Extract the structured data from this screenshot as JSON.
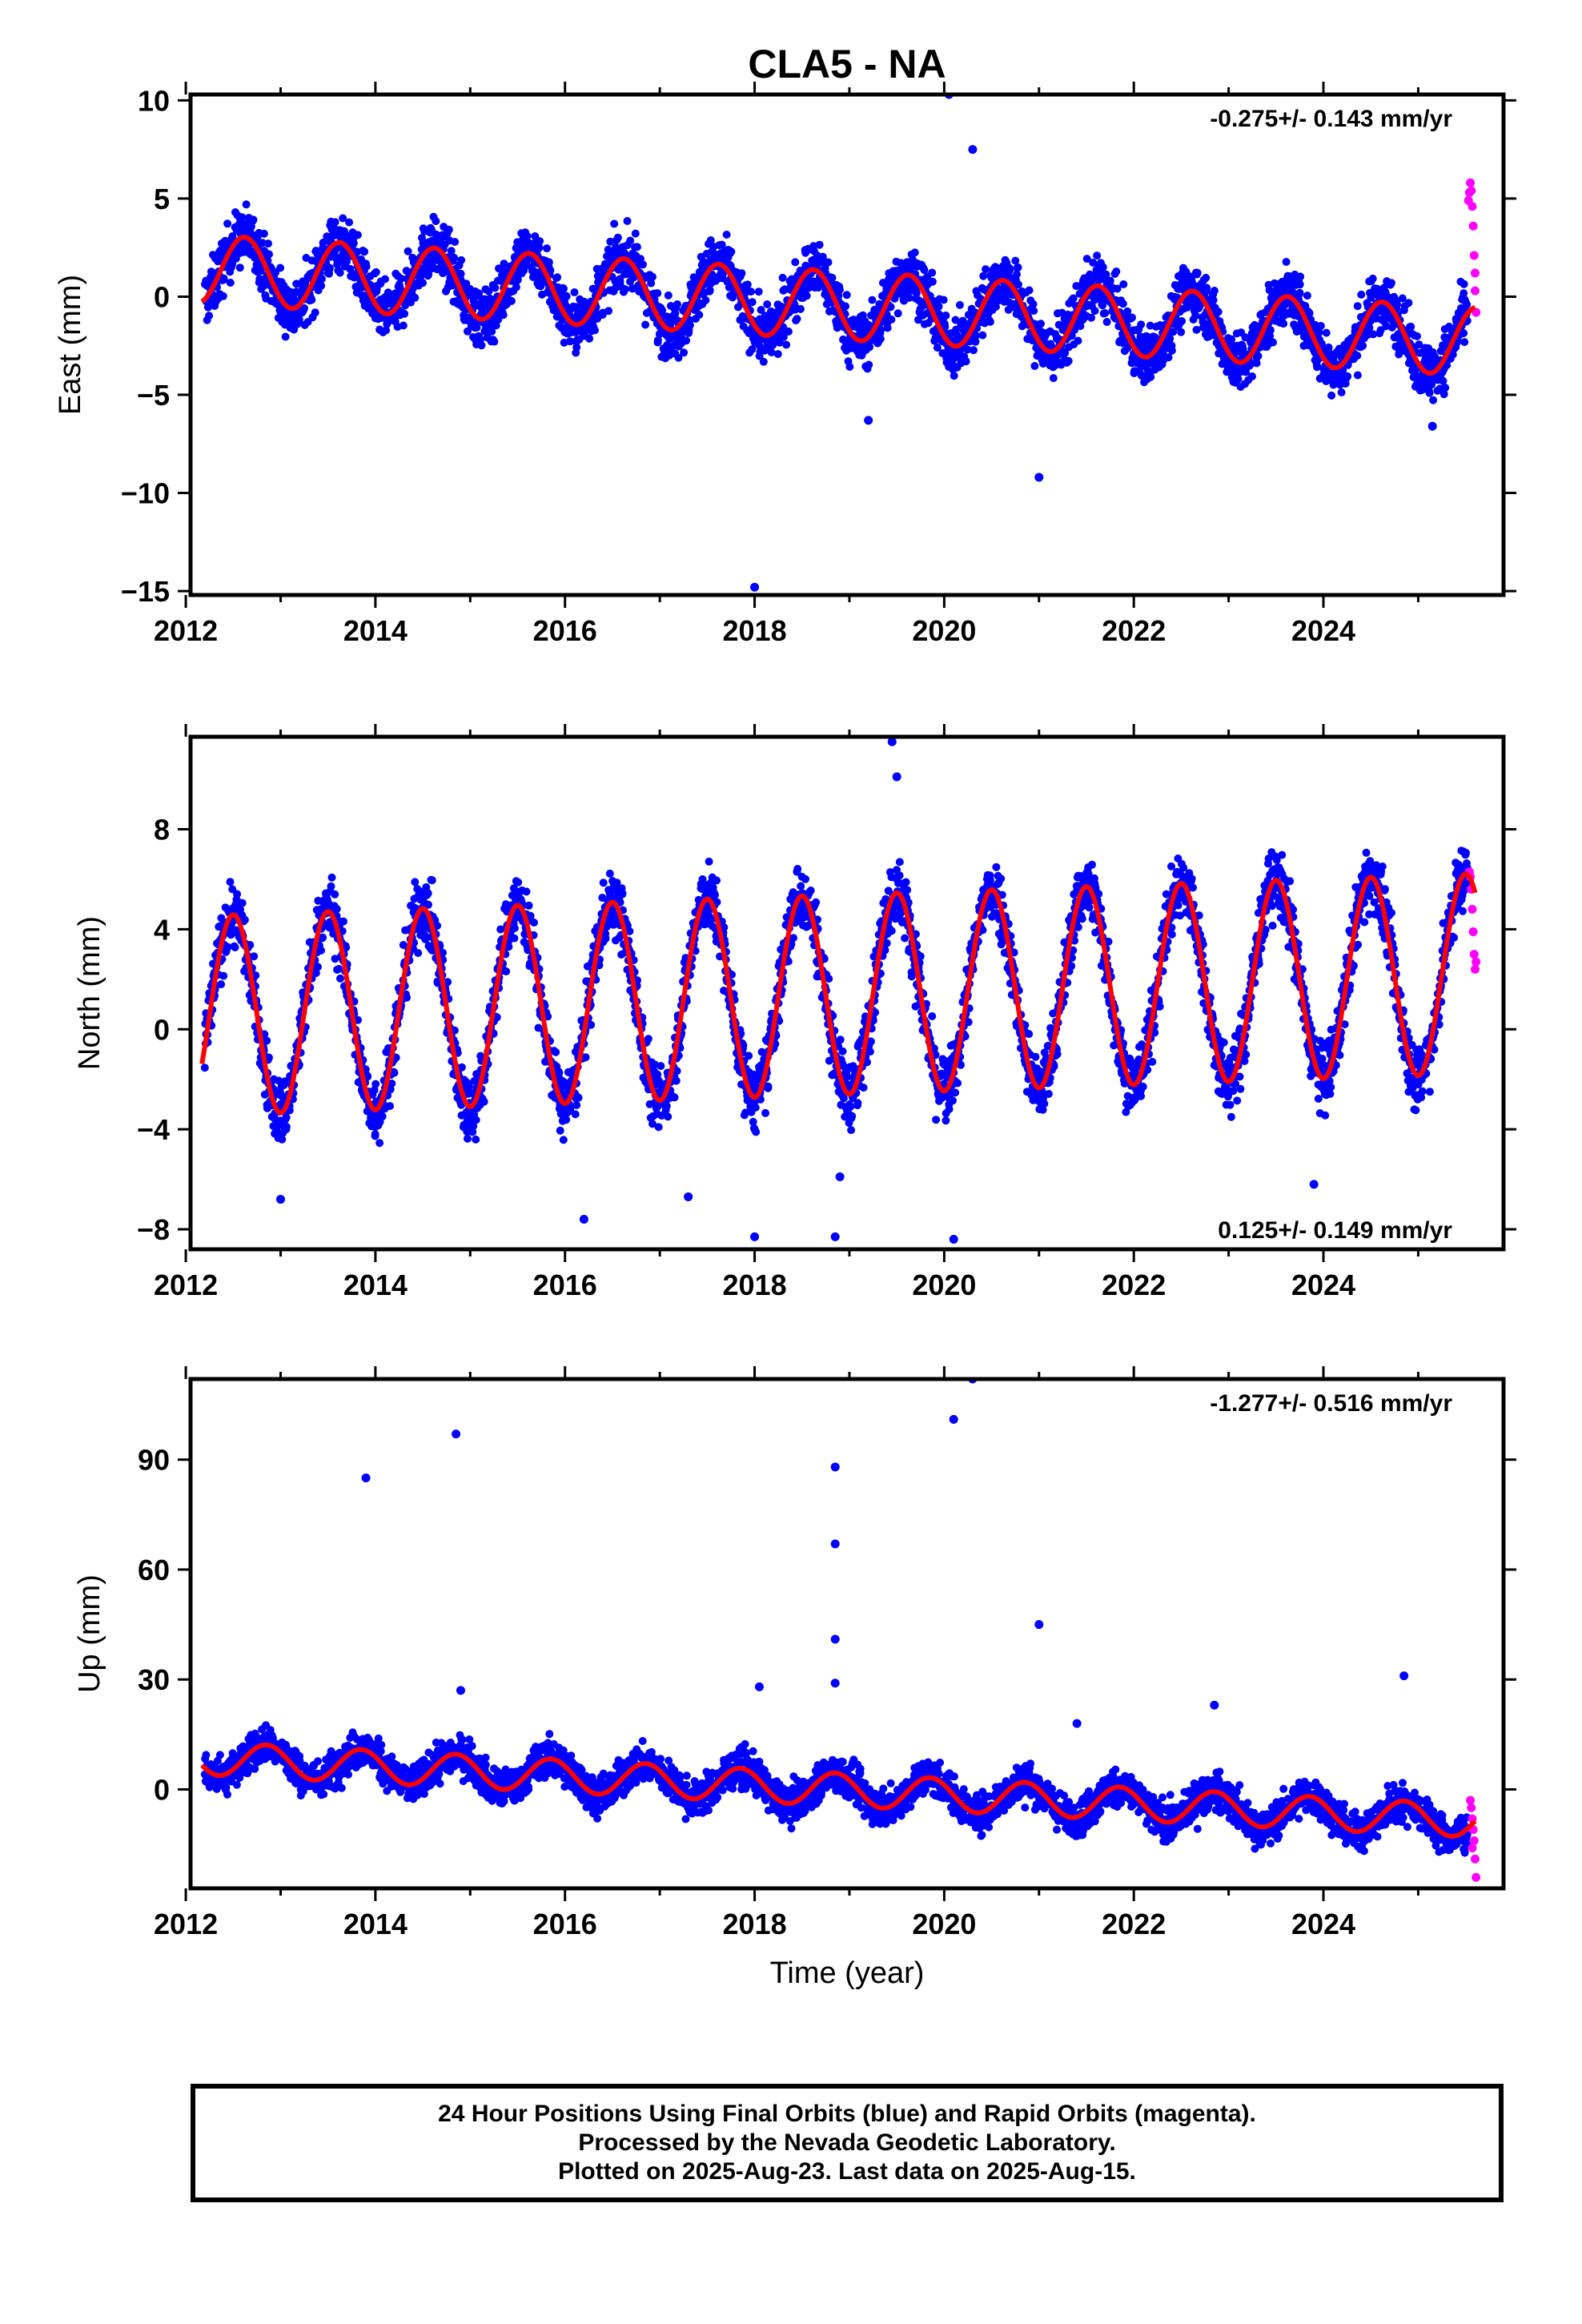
{
  "figure": {
    "title": "CLA5 - NA"
  },
  "caption": {
    "line1": "24 Hour Positions Using Final Orbits (blue) and Rapid Orbits (magenta).",
    "line2": "Processed by the Nevada Geodetic Laboratory.",
    "line3": "Plotted on 2025-Aug-23. Last data on 2025-Aug-15."
  },
  "colors": {
    "final_orbits": "#0000ff",
    "rapid_orbits": "#ff00ff",
    "model_fit": "#ff0000"
  },
  "chart_data": [
    {
      "type": "scatter",
      "title": "",
      "xlabel": "",
      "ylabel": "East (mm)",
      "xlim": [
        2012.05,
        2025.9
      ],
      "ylim": [
        -15.2,
        10.3
      ],
      "x_ticks": [
        2012,
        2014,
        2016,
        2018,
        2020,
        2022,
        2024
      ],
      "y_ticks": [
        10,
        5,
        0,
        -5,
        -10,
        -15
      ],
      "y_tick_labels": [
        "10",
        "5",
        "0",
        "−5",
        "−10",
        "−15"
      ],
      "annotation": "-0.275+/- 0.143 mm/yr",
      "annotation_position": "top-right",
      "series": [
        {
          "kind": "final_orbits",
          "model": {
            "t0": 2012.2,
            "t1": 2025.52,
            "offset": 1.4,
            "trend": -0.275,
            "amp": 1.75,
            "peak": 0.62,
            "noise": 1.15,
            "outliers": [
              [
                2020.05,
                10.3
              ],
              [
                2020.3,
                7.5
              ],
              [
                2021.0,
                -9.2
              ],
              [
                2018.0,
                -14.8
              ],
              [
                2019.2,
                -6.3
              ],
              [
                2025.15,
                -6.6
              ]
            ]
          }
        },
        {
          "kind": "rapid_orbits",
          "points": [
            [
              2025.55,
              5.8
            ],
            [
              2025.56,
              5.4
            ],
            [
              2025.57,
              4.6
            ],
            [
              2025.58,
              3.6
            ],
            [
              2025.59,
              2.1
            ],
            [
              2025.6,
              0.3
            ],
            [
              2025.61,
              -0.8
            ],
            [
              2025.53,
              4.9
            ],
            [
              2025.54,
              5.3
            ],
            [
              2025.6,
              1.2
            ]
          ]
        },
        {
          "kind": "model_fit",
          "model": {
            "t0": 2012.17,
            "t1": 2025.6,
            "offset": 1.4,
            "trend": -0.275,
            "amp": 1.75,
            "peak": 0.62
          }
        }
      ]
    },
    {
      "type": "scatter",
      "title": "",
      "xlabel": "",
      "ylabel": "North (mm)",
      "xlim": [
        2012.05,
        2025.9
      ],
      "ylim": [
        -8.8,
        11.7
      ],
      "x_ticks": [
        2012,
        2014,
        2016,
        2018,
        2020,
        2022,
        2024
      ],
      "y_ticks": [
        8,
        4,
        0,
        -4,
        -8
      ],
      "y_tick_labels": [
        "8",
        "4",
        "0",
        "−4",
        "−8"
      ],
      "annotation": "0.125+/- 0.149 mm/yr",
      "annotation_position": "bottom-right",
      "series": [
        {
          "kind": "final_orbits",
          "model": {
            "t0": 2012.2,
            "t1": 2025.52,
            "offset": 0.55,
            "trend": 0.125,
            "amp": 4.0,
            "peak": 0.5,
            "noise": 1.05,
            "outliers": [
              [
                2019.45,
                11.5
              ],
              [
                2019.5,
                10.1
              ],
              [
                2018.0,
                -8.3
              ],
              [
                2018.85,
                -8.3
              ],
              [
                2020.1,
                -8.4
              ],
              [
                2016.2,
                -7.6
              ],
              [
                2017.3,
                -6.7
              ],
              [
                2018.9,
                -5.9
              ],
              [
                2023.9,
                -6.2
              ],
              [
                2013.0,
                -6.8
              ]
            ]
          }
        },
        {
          "kind": "rapid_orbits",
          "points": [
            [
              2025.55,
              6.1
            ],
            [
              2025.56,
              5.6
            ],
            [
              2025.57,
              4.8
            ],
            [
              2025.58,
              3.9
            ],
            [
              2025.59,
              3.0
            ],
            [
              2025.6,
              2.4
            ],
            [
              2025.61,
              2.7
            ],
            [
              2025.54,
              6.3
            ]
          ]
        },
        {
          "kind": "model_fit",
          "model": {
            "t0": 2012.17,
            "t1": 2025.6,
            "offset": 0.55,
            "trend": 0.125,
            "amp": 4.0,
            "peak": 0.5
          }
        }
      ]
    },
    {
      "type": "scatter",
      "title": "",
      "xlabel": "Time (year)",
      "ylabel": "Up (mm)",
      "xlim": [
        2012.05,
        2025.9
      ],
      "ylim": [
        -27,
        112
      ],
      "x_ticks": [
        2012,
        2014,
        2016,
        2018,
        2020,
        2022,
        2024
      ],
      "y_ticks": [
        90,
        60,
        30,
        0
      ],
      "y_tick_labels": [
        "90",
        "60",
        "30",
        "0"
      ],
      "annotation": "-1.277+/- 0.516 mm/yr",
      "annotation_position": "top-right",
      "series": [
        {
          "kind": "final_orbits",
          "model": {
            "t0": 2012.2,
            "t1": 2025.52,
            "offset": 8.5,
            "trend": -1.277,
            "amp": 4.5,
            "peak": 0.85,
            "noise": 4.0,
            "outliers": [
              [
                2013.9,
                85
              ],
              [
                2014.85,
                97
              ],
              [
                2018.85,
                88
              ],
              [
                2018.85,
                67
              ],
              [
                2018.85,
                41
              ],
              [
                2018.85,
                29
              ],
              [
                2020.1,
                101
              ],
              [
                2020.3,
                112
              ],
              [
                2021.0,
                45
              ],
              [
                2024.85,
                31
              ],
              [
                2014.9,
                27
              ],
              [
                2018.05,
                28
              ],
              [
                2022.85,
                23
              ],
              [
                2021.4,
                18
              ]
            ]
          }
        },
        {
          "kind": "rapid_orbits",
          "points": [
            [
              2025.55,
              -3
            ],
            [
              2025.56,
              -5
            ],
            [
              2025.57,
              -8
            ],
            [
              2025.58,
              -11
            ],
            [
              2025.59,
              -14
            ],
            [
              2025.6,
              -19
            ],
            [
              2025.61,
              -24
            ],
            [
              2025.57,
              -16
            ]
          ]
        },
        {
          "kind": "model_fit",
          "model": {
            "t0": 2012.17,
            "t1": 2025.6,
            "offset": 8.5,
            "trend": -1.277,
            "amp": 4.5,
            "peak": 0.85
          }
        }
      ]
    }
  ]
}
